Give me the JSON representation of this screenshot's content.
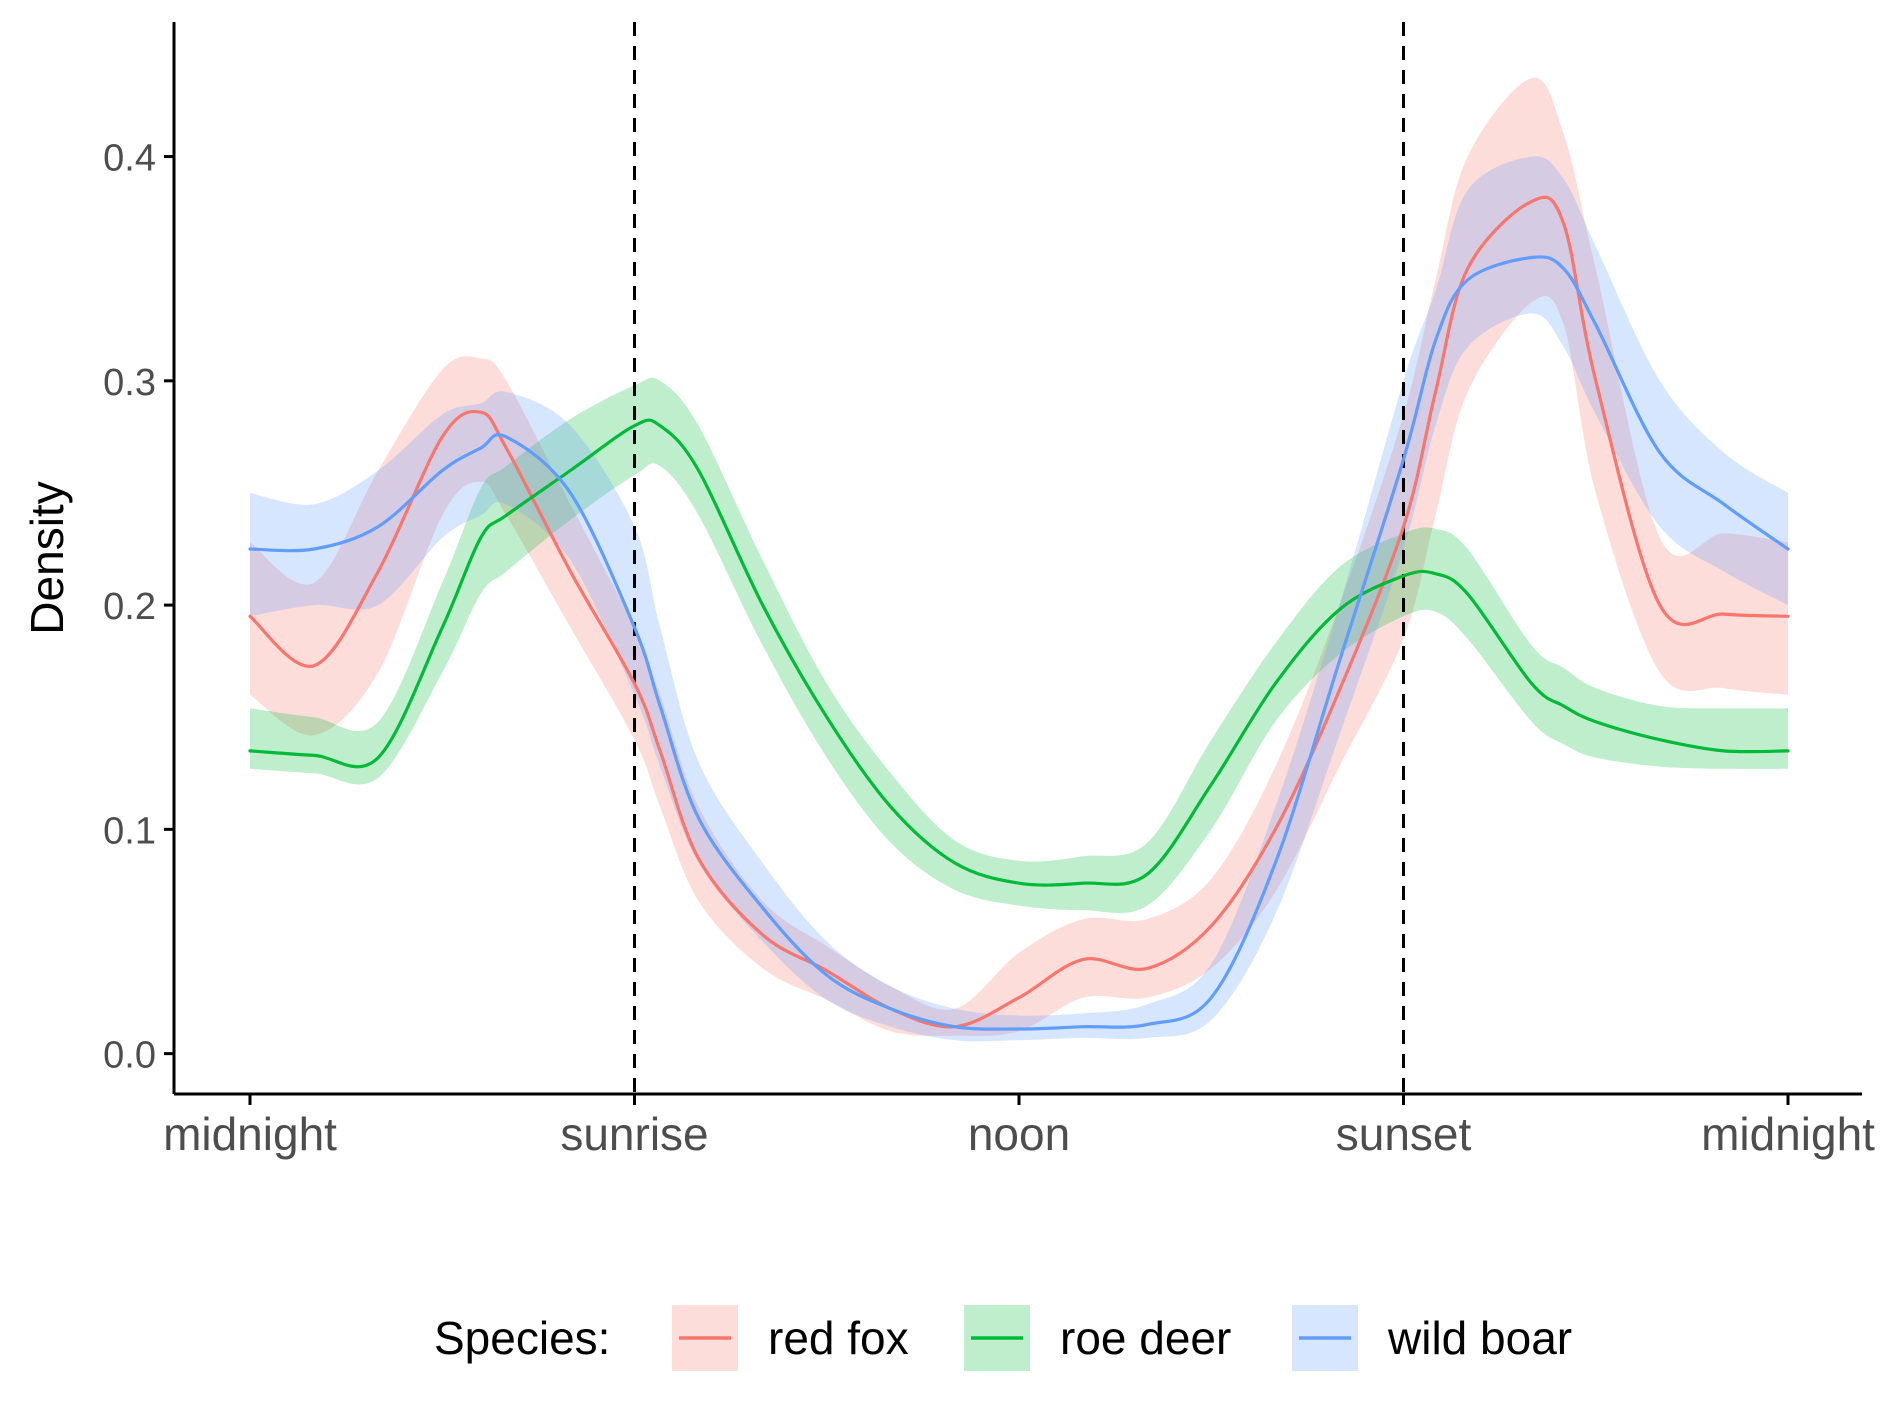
{
  "chart_data": {
    "type": "line",
    "title": "",
    "xlabel": "",
    "ylabel": "Density",
    "x_unit": "hour of day",
    "xlim": [
      0,
      24
    ],
    "ylim": [
      -0.018,
      0.46
    ],
    "x_ticks": [
      {
        "value": 0,
        "label": "midnight"
      },
      {
        "value": 6,
        "label": "sunrise"
      },
      {
        "value": 12,
        "label": "noon"
      },
      {
        "value": 18,
        "label": "sunset"
      },
      {
        "value": 24,
        "label": "midnight"
      }
    ],
    "y_ticks": [
      {
        "value": 0.0,
        "label": "0.0"
      },
      {
        "value": 0.1,
        "label": "0.1"
      },
      {
        "value": 0.2,
        "label": "0.2"
      },
      {
        "value": 0.3,
        "label": "0.3"
      },
      {
        "value": 0.4,
        "label": "0.4"
      }
    ],
    "vlines": [
      {
        "x": 6,
        "style": "dashed"
      },
      {
        "x": 18,
        "style": "dashed"
      }
    ],
    "grid": false,
    "legend": {
      "title": "Species:",
      "position": "bottom"
    },
    "x": [
      0,
      1,
      2,
      3,
      3.6,
      4,
      5,
      6,
      6.4,
      7,
      8,
      9,
      10,
      11,
      12,
      13,
      14,
      15,
      16,
      17,
      18,
      18.5,
      19,
      20,
      20.5,
      21,
      22,
      23,
      24
    ],
    "series": [
      {
        "name": "red fox",
        "color": "#F8766D",
        "values": [
          0.195,
          0.173,
          0.215,
          0.275,
          0.286,
          0.27,
          0.215,
          0.165,
          0.135,
          0.087,
          0.053,
          0.037,
          0.02,
          0.012,
          0.025,
          0.042,
          0.038,
          0.057,
          0.1,
          0.162,
          0.235,
          0.295,
          0.35,
          0.38,
          0.37,
          0.3,
          0.2,
          0.196,
          0.195
        ],
        "lower": [
          0.16,
          0.142,
          0.17,
          0.24,
          0.255,
          0.24,
          0.19,
          0.14,
          0.11,
          0.068,
          0.038,
          0.024,
          0.01,
          0.008,
          0.01,
          0.025,
          0.025,
          0.038,
          0.072,
          0.128,
          0.185,
          0.24,
          0.295,
          0.335,
          0.325,
          0.25,
          0.17,
          0.163,
          0.16
        ],
        "upper": [
          0.228,
          0.21,
          0.26,
          0.305,
          0.31,
          0.3,
          0.245,
          0.19,
          0.16,
          0.11,
          0.068,
          0.048,
          0.03,
          0.02,
          0.045,
          0.06,
          0.06,
          0.078,
          0.128,
          0.2,
          0.285,
          0.345,
          0.4,
          0.435,
          0.41,
          0.35,
          0.23,
          0.232,
          0.228
        ]
      },
      {
        "name": "roe deer",
        "color": "#00BA38",
        "values": [
          0.135,
          0.133,
          0.132,
          0.19,
          0.23,
          0.24,
          0.26,
          0.28,
          0.28,
          0.26,
          0.2,
          0.15,
          0.11,
          0.085,
          0.076,
          0.076,
          0.08,
          0.12,
          0.165,
          0.198,
          0.213,
          0.214,
          0.205,
          0.165,
          0.155,
          0.148,
          0.14,
          0.135,
          0.135
        ],
        "lower": [
          0.127,
          0.125,
          0.123,
          0.17,
          0.205,
          0.215,
          0.238,
          0.258,
          0.262,
          0.24,
          0.182,
          0.132,
          0.094,
          0.073,
          0.066,
          0.064,
          0.066,
          0.1,
          0.148,
          0.178,
          0.195,
          0.197,
          0.185,
          0.148,
          0.138,
          0.132,
          0.128,
          0.127,
          0.127
        ],
        "upper": [
          0.154,
          0.15,
          0.148,
          0.21,
          0.252,
          0.262,
          0.283,
          0.298,
          0.3,
          0.28,
          0.22,
          0.165,
          0.125,
          0.095,
          0.086,
          0.088,
          0.094,
          0.14,
          0.183,
          0.217,
          0.232,
          0.234,
          0.225,
          0.182,
          0.172,
          0.163,
          0.155,
          0.154,
          0.154
        ]
      },
      {
        "name": "wild boar",
        "color": "#619CFF",
        "values": [
          0.225,
          0.225,
          0.235,
          0.26,
          0.27,
          0.275,
          0.25,
          0.19,
          0.155,
          0.105,
          0.065,
          0.035,
          0.02,
          0.012,
          0.011,
          0.012,
          0.013,
          0.025,
          0.085,
          0.175,
          0.265,
          0.318,
          0.345,
          0.355,
          0.35,
          0.325,
          0.268,
          0.245,
          0.225
        ],
        "lower": [
          0.195,
          0.2,
          0.2,
          0.23,
          0.24,
          0.245,
          0.22,
          0.16,
          0.128,
          0.085,
          0.05,
          0.024,
          0.012,
          0.006,
          0.006,
          0.007,
          0.007,
          0.015,
          0.062,
          0.142,
          0.225,
          0.28,
          0.315,
          0.33,
          0.315,
          0.285,
          0.235,
          0.215,
          0.2
        ],
        "upper": [
          0.25,
          0.245,
          0.26,
          0.285,
          0.29,
          0.295,
          0.28,
          0.235,
          0.19,
          0.13,
          0.085,
          0.05,
          0.03,
          0.02,
          0.017,
          0.018,
          0.022,
          0.04,
          0.11,
          0.2,
          0.3,
          0.34,
          0.385,
          0.4,
          0.39,
          0.36,
          0.3,
          0.268,
          0.25
        ]
      }
    ]
  }
}
